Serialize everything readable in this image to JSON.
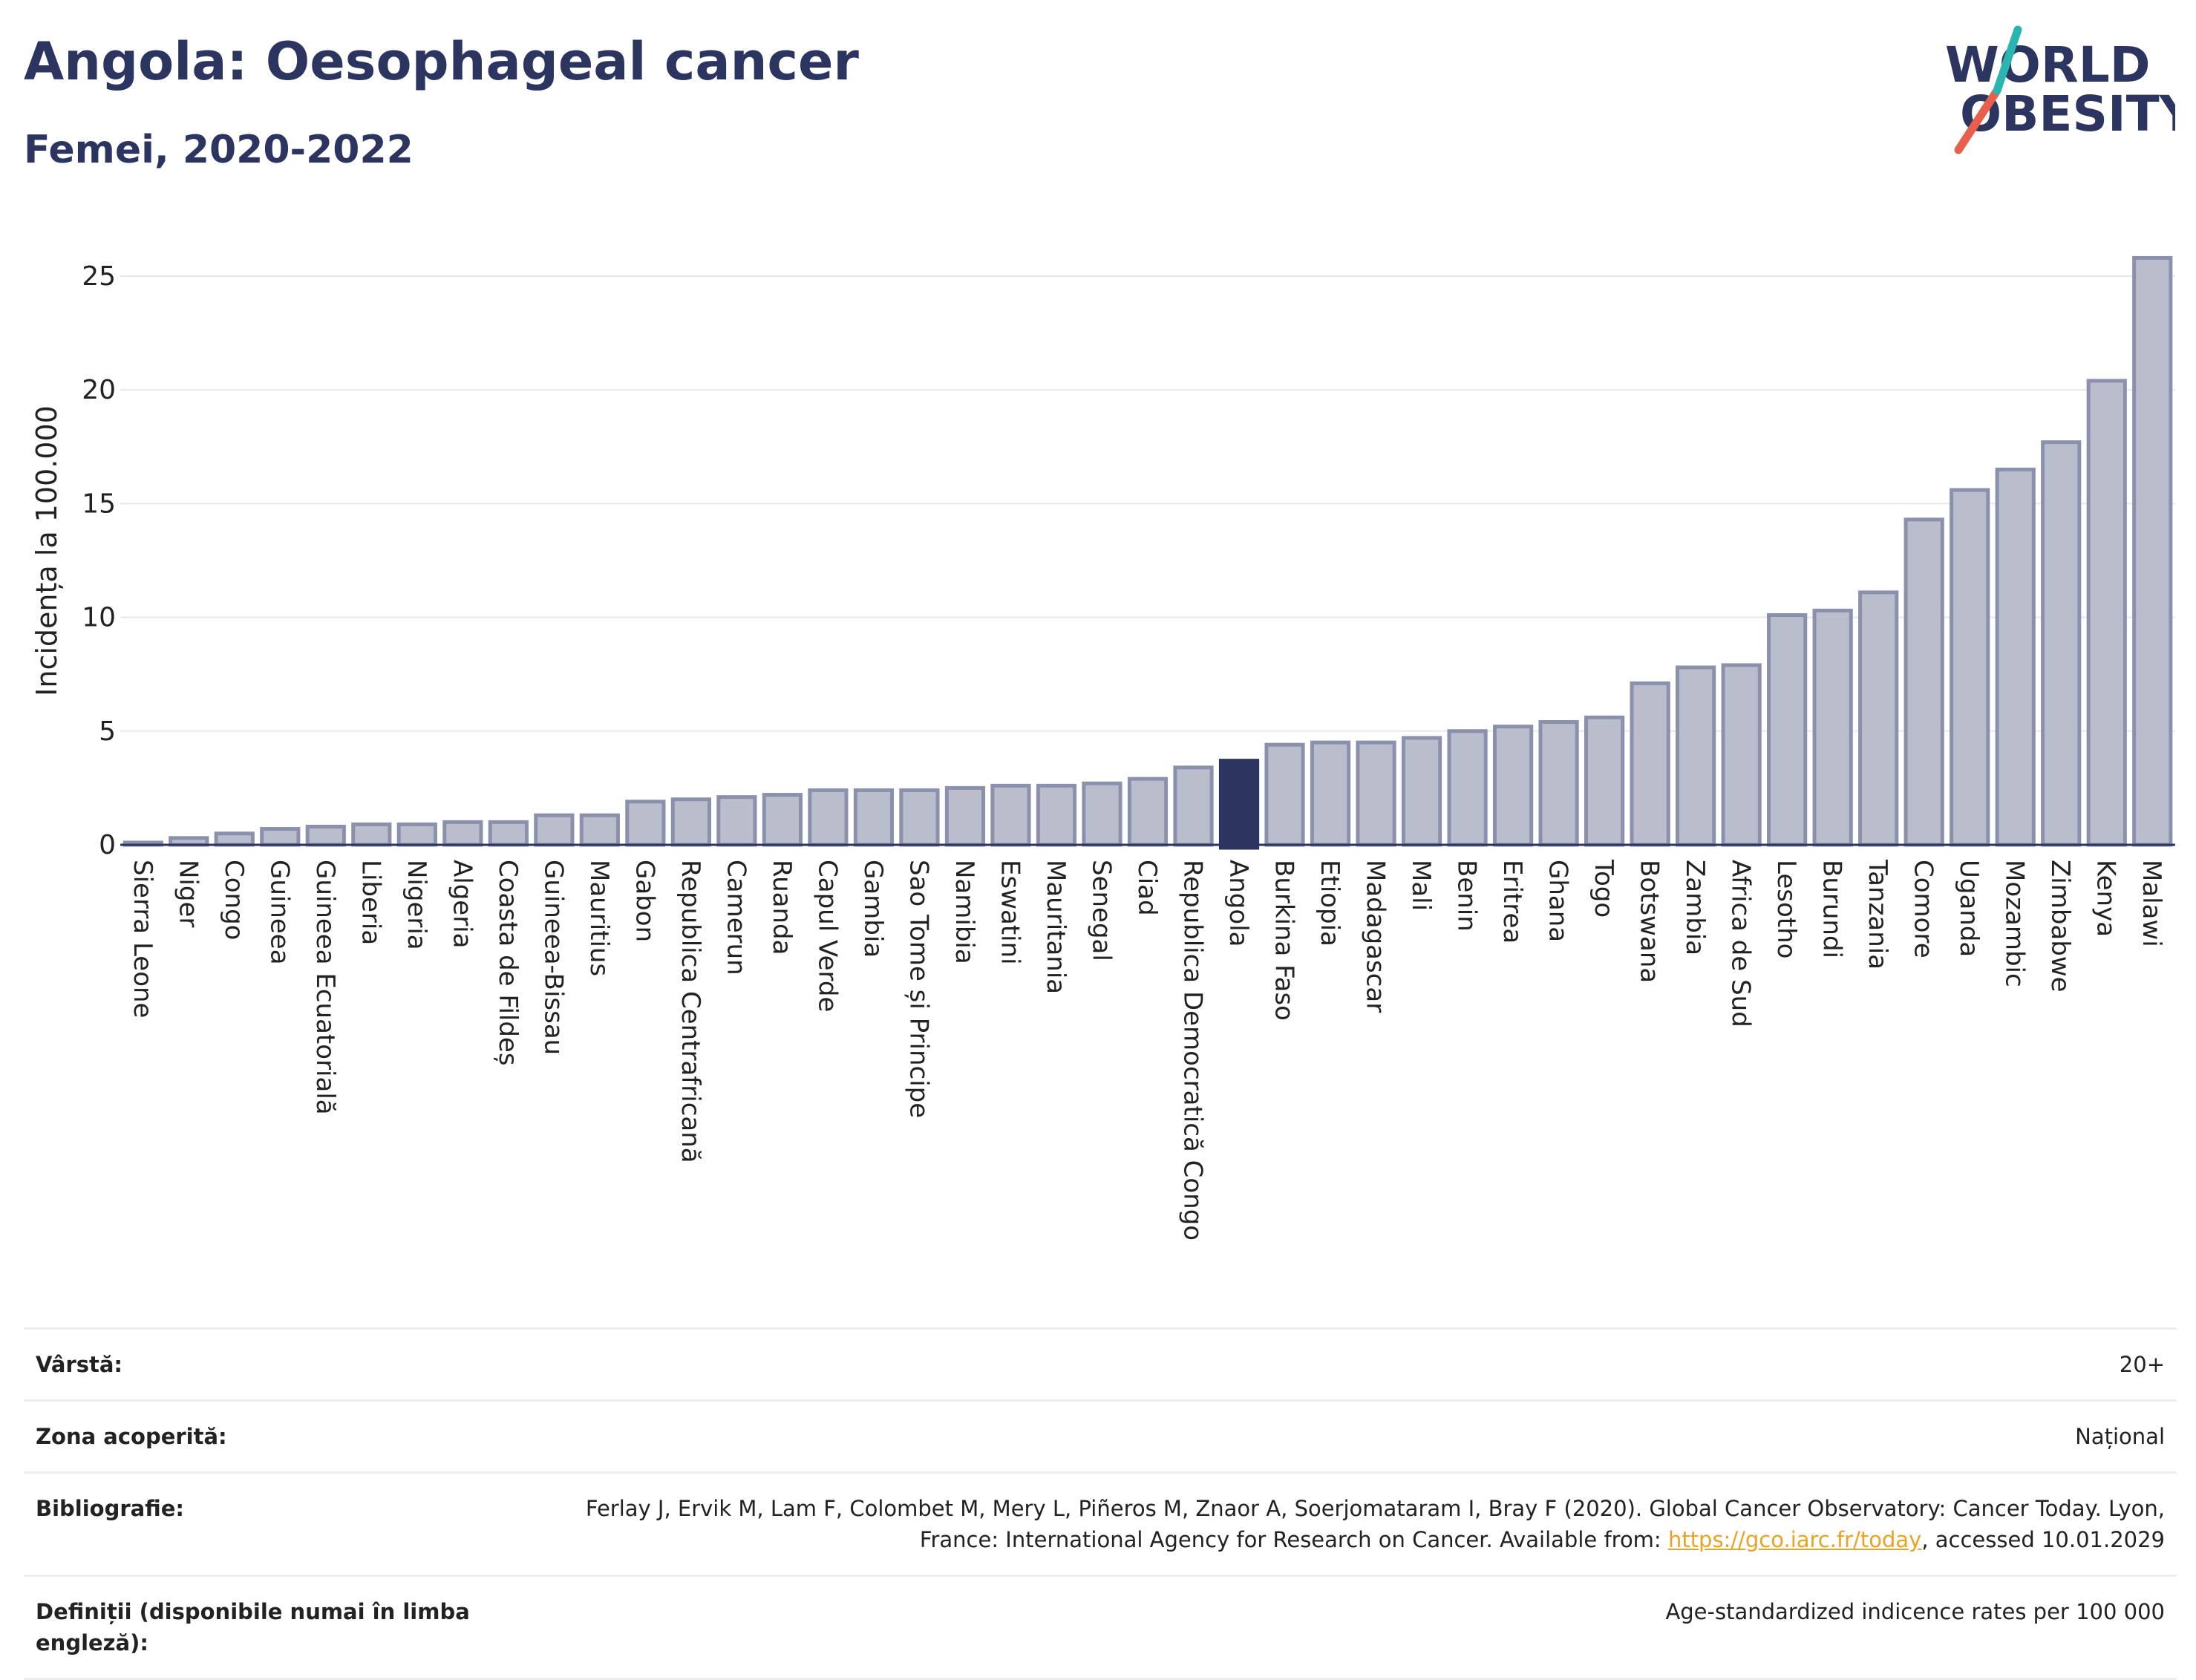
{
  "header": {
    "title": "Angola: Oesophageal cancer",
    "subtitle": "Femei, 2020-2022"
  },
  "logo": {
    "line1": "WORLD",
    "line2": "OBESITY",
    "accent_colors": [
      "#e8604c",
      "#2ab5b0"
    ]
  },
  "chart_data": {
    "type": "bar",
    "ylabel": "Incidența la 100.000",
    "xlabel": "",
    "ylim": [
      0,
      26.5
    ],
    "yticks": [
      0,
      5,
      10,
      15,
      20,
      25
    ],
    "grid": true,
    "highlight": "Angola",
    "colors": {
      "bar": "#b9bdcc",
      "bar_border": "#8b91ad",
      "highlight": "#2c3560",
      "grid": "#e6e8ee",
      "axis": "#2c3560"
    },
    "categories": [
      "Sierra Leone",
      "Niger",
      "Congo",
      "Guineea",
      "Guineea Ecuatorială",
      "Liberia",
      "Nigeria",
      "Algeria",
      "Coasta de Fildeș",
      "Guineea-Bissau",
      "Mauritius",
      "Gabon",
      "Republica Centrafricană",
      "Camerun",
      "Ruanda",
      "Capul Verde",
      "Gambia",
      "Sao Tome și Principe",
      "Namibia",
      "Eswatini",
      "Mauritania",
      "Senegal",
      "Ciad",
      "Republica Democratică Congo",
      "Angola",
      "Burkina Faso",
      "Etiopia",
      "Madagascar",
      "Mali",
      "Benin",
      "Eritrea",
      "Ghana",
      "Togo",
      "Botswana",
      "Zambia",
      "Africa de Sud",
      "Lesotho",
      "Burundi",
      "Tanzania",
      "Comore",
      "Uganda",
      "Mozambic",
      "Zimbabwe",
      "Kenya",
      "Malawi"
    ],
    "values": [
      0.1,
      0.3,
      0.5,
      0.7,
      0.8,
      0.9,
      0.9,
      1.0,
      1.0,
      1.3,
      1.3,
      1.9,
      2.0,
      2.1,
      2.2,
      2.4,
      2.4,
      2.4,
      2.5,
      2.6,
      2.6,
      2.7,
      2.9,
      3.4,
      3.7,
      4.4,
      4.5,
      4.5,
      4.7,
      5.0,
      5.2,
      5.4,
      5.6,
      7.1,
      7.8,
      7.9,
      10.1,
      10.3,
      11.1,
      14.3,
      15.6,
      16.5,
      17.7,
      20.4,
      25.8
    ]
  },
  "meta": [
    {
      "key": "Vârstă:",
      "value": "20+"
    },
    {
      "key": "Zona acoperită:",
      "value": "Național"
    },
    {
      "key": "Bibliografie:",
      "value_pre": "Ferlay J, Ervik M, Lam F, Colombet M, Mery L, Piñeros M, Znaor A, Soerjomataram I, Bray F (2020). Global Cancer Observatory: Cancer Today. Lyon, France: International Agency for Research on Cancer. Available from: ",
      "link": "https://gco.iarc.fr/today",
      "value_post": ", accessed 10.01.2029"
    },
    {
      "key": "Definiții (disponibile numai în limba engleză):",
      "value": "Age-standardized indicence rates per 100 000"
    }
  ]
}
